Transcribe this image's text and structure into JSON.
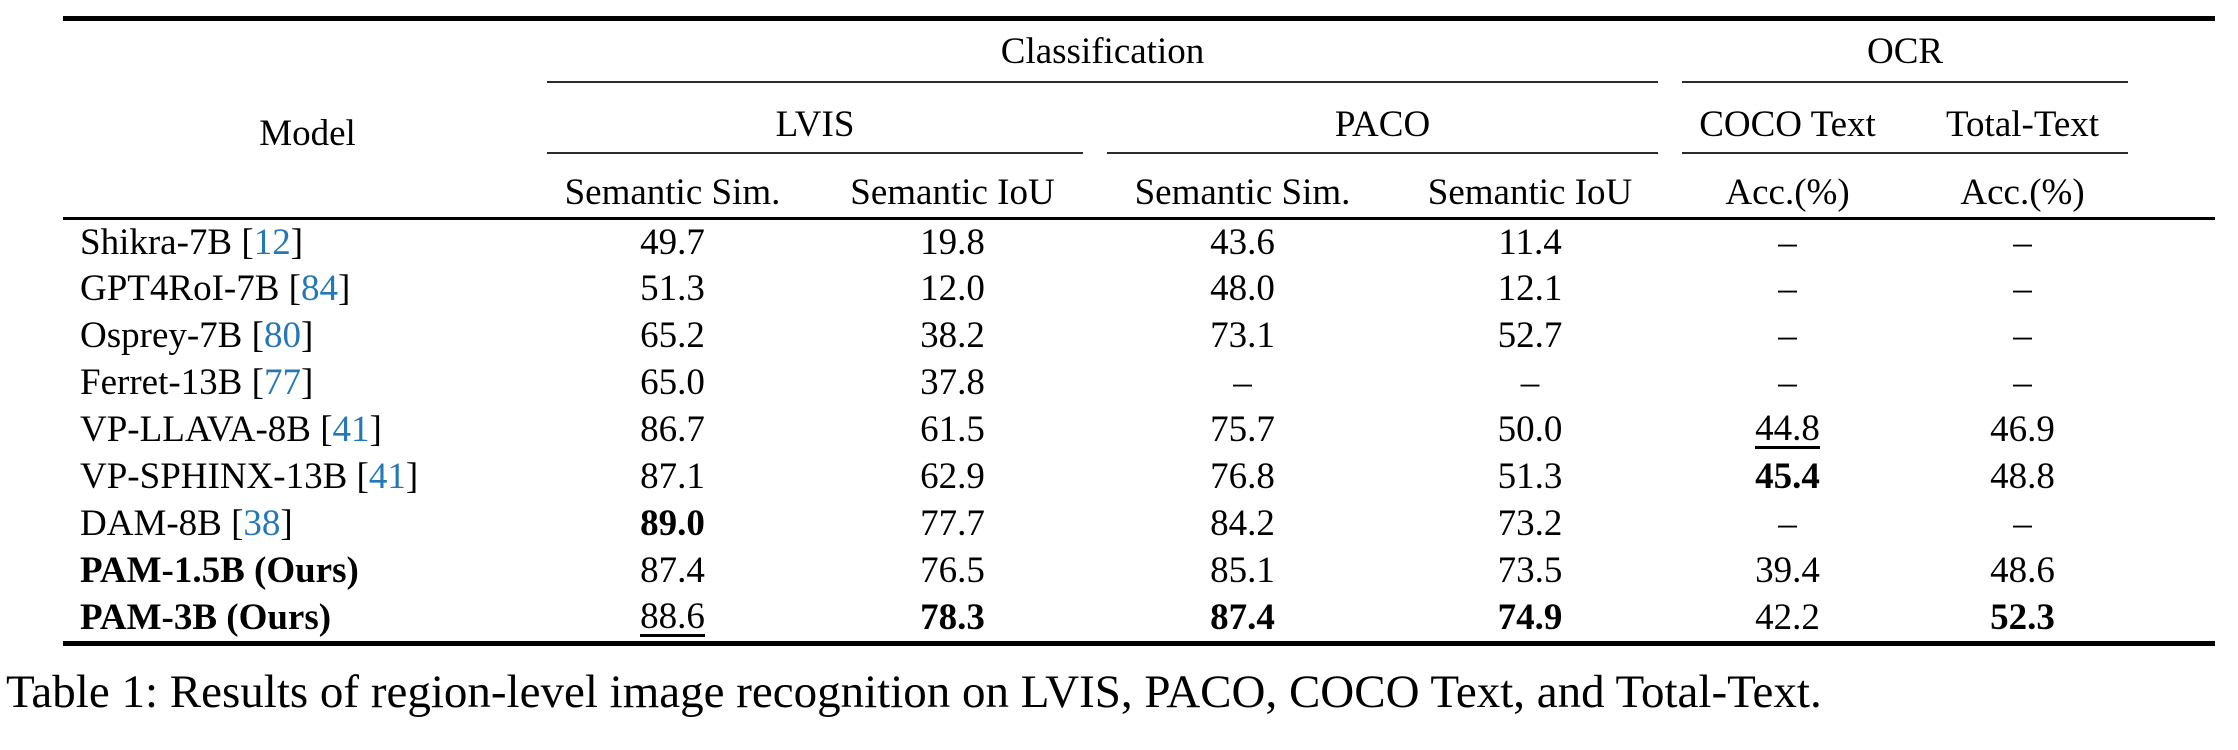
{
  "colors": {
    "citation_blue": "#2478b5"
  },
  "caption": "Table 1: Results of region-level image recognition on LVIS, PACO, COCO Text, and Total-Text.",
  "table": {
    "header": {
      "model_label": "Model",
      "group_classification": "Classification",
      "group_ocr": "OCR",
      "dataset_lvis": "LVIS",
      "dataset_paco": "PACO",
      "dataset_coco_text": "COCO Text",
      "dataset_total_text": "Total-Text",
      "subcolumns": [
        "Semantic Sim.",
        "Semantic IoU",
        "Semantic Sim.",
        "Semantic IoU",
        "Acc.(%)",
        "Acc.(%)"
      ]
    },
    "rows": [
      {
        "model": "Shikra-7B",
        "citation": "12",
        "model_bold": false,
        "cells": [
          {
            "text": "49.7"
          },
          {
            "text": "19.8"
          },
          {
            "text": "43.6"
          },
          {
            "text": "11.4"
          },
          {
            "text": "–"
          },
          {
            "text": "–"
          }
        ]
      },
      {
        "model": "GPT4RoI-7B",
        "citation": "84",
        "model_bold": false,
        "cells": [
          {
            "text": "51.3"
          },
          {
            "text": "12.0"
          },
          {
            "text": "48.0"
          },
          {
            "text": "12.1"
          },
          {
            "text": "–"
          },
          {
            "text": "–"
          }
        ]
      },
      {
        "model": "Osprey-7B",
        "citation": "80",
        "model_bold": false,
        "cells": [
          {
            "text": "65.2"
          },
          {
            "text": "38.2"
          },
          {
            "text": "73.1"
          },
          {
            "text": "52.7"
          },
          {
            "text": "–"
          },
          {
            "text": "–"
          }
        ]
      },
      {
        "model": "Ferret-13B",
        "citation": "77",
        "model_bold": false,
        "cells": [
          {
            "text": "65.0"
          },
          {
            "text": "37.8"
          },
          {
            "text": "–"
          },
          {
            "text": "–"
          },
          {
            "text": "–"
          },
          {
            "text": "–"
          }
        ]
      },
      {
        "model": "VP-LLAVA-8B",
        "citation": "41",
        "model_bold": false,
        "cells": [
          {
            "text": "86.7"
          },
          {
            "text": "61.5"
          },
          {
            "text": "75.7"
          },
          {
            "text": "50.0"
          },
          {
            "text": "44.8",
            "underline": true
          },
          {
            "text": "46.9"
          }
        ]
      },
      {
        "model": "VP-SPHINX-13B",
        "citation": "41",
        "model_bold": false,
        "cells": [
          {
            "text": "87.1"
          },
          {
            "text": "62.9"
          },
          {
            "text": "76.8"
          },
          {
            "text": "51.3"
          },
          {
            "text": "45.4",
            "bold": true
          },
          {
            "text": "48.8"
          }
        ]
      },
      {
        "model": "DAM-8B",
        "citation": "38",
        "model_bold": false,
        "cells": [
          {
            "text": "89.0",
            "bold": true
          },
          {
            "text": "77.7"
          },
          {
            "text": "84.2"
          },
          {
            "text": "73.2"
          },
          {
            "text": "–"
          },
          {
            "text": "–"
          }
        ]
      },
      {
        "model": "PAM-1.5B (Ours)",
        "citation": null,
        "model_bold": true,
        "cells": [
          {
            "text": "87.4"
          },
          {
            "text": "76.5"
          },
          {
            "text": "85.1"
          },
          {
            "text": "73.5"
          },
          {
            "text": "39.4"
          },
          {
            "text": "48.6"
          }
        ]
      },
      {
        "model": "PAM-3B (Ours)",
        "citation": null,
        "model_bold": true,
        "cells": [
          {
            "text": "88.6",
            "underline": true
          },
          {
            "text": "78.3",
            "bold": true
          },
          {
            "text": "87.4",
            "bold": true
          },
          {
            "text": "74.9",
            "bold": true
          },
          {
            "text": "42.2"
          },
          {
            "text": "52.3",
            "bold": true
          }
        ]
      }
    ]
  }
}
